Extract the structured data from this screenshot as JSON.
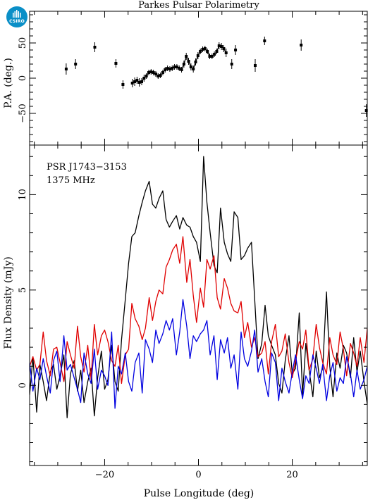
{
  "logo": {
    "text": "CSIRO"
  },
  "chart_data": [
    {
      "type": "scatter",
      "title": "Parkes Pulsar Polarimetry",
      "ylabel": "P.A. (deg.)",
      "xlim": [
        -36,
        36
      ],
      "ylim": [
        -95,
        95
      ],
      "yticks": [
        -50,
        0,
        50
      ],
      "yticklabels": [
        "−50",
        "0",
        "50"
      ],
      "series": [
        {
          "points": [
            {
              "x": -28.2,
              "y": 13,
              "err": 8
            },
            {
              "x": -26.2,
              "y": 20,
              "err": 7
            },
            {
              "x": -22.1,
              "y": 44,
              "err": 7
            },
            {
              "x": -17.6,
              "y": 21,
              "err": 6
            },
            {
              "x": -16.1,
              "y": -9,
              "err": 6
            },
            {
              "x": -14.1,
              "y": -7,
              "err": 6
            },
            {
              "x": -13.6,
              "y": -5,
              "err": 6
            },
            {
              "x": -13.1,
              "y": -3,
              "err": 5
            },
            {
              "x": -12.6,
              "y": -6,
              "err": 6
            },
            {
              "x": -12.1,
              "y": -5,
              "err": 5
            },
            {
              "x": -11.6,
              "y": 0,
              "err": 5
            },
            {
              "x": -11.1,
              "y": 3,
              "err": 4
            },
            {
              "x": -10.6,
              "y": 8,
              "err": 4
            },
            {
              "x": -10.1,
              "y": 9,
              "err": 4
            },
            {
              "x": -9.6,
              "y": 8,
              "err": 4
            },
            {
              "x": -9.1,
              "y": 6,
              "err": 4
            },
            {
              "x": -8.6,
              "y": 3,
              "err": 4
            },
            {
              "x": -8.1,
              "y": 4,
              "err": 4
            },
            {
              "x": -7.6,
              "y": 8,
              "err": 4
            },
            {
              "x": -7.1,
              "y": 12,
              "err": 4
            },
            {
              "x": -6.6,
              "y": 14,
              "err": 4
            },
            {
              "x": -6.1,
              "y": 13,
              "err": 4
            },
            {
              "x": -5.6,
              "y": 14,
              "err": 4
            },
            {
              "x": -5.1,
              "y": 16,
              "err": 4
            },
            {
              "x": -4.6,
              "y": 16,
              "err": 4
            },
            {
              "x": -4.1,
              "y": 14,
              "err": 4
            },
            {
              "x": -3.6,
              "y": 12,
              "err": 4
            },
            {
              "x": -3.1,
              "y": 20,
              "err": 5
            },
            {
              "x": -2.6,
              "y": 31,
              "err": 5
            },
            {
              "x": -2.1,
              "y": 24,
              "err": 5
            },
            {
              "x": -1.6,
              "y": 16,
              "err": 5
            },
            {
              "x": -1.1,
              "y": 13,
              "err": 5
            },
            {
              "x": -0.6,
              "y": 23,
              "err": 5
            },
            {
              "x": -0.1,
              "y": 32,
              "err": 5
            },
            {
              "x": 0.4,
              "y": 38,
              "err": 4
            },
            {
              "x": 0.9,
              "y": 41,
              "err": 4
            },
            {
              "x": 1.4,
              "y": 42,
              "err": 4
            },
            {
              "x": 1.9,
              "y": 38,
              "err": 4
            },
            {
              "x": 2.4,
              "y": 31,
              "err": 4
            },
            {
              "x": 2.9,
              "y": 31,
              "err": 4
            },
            {
              "x": 3.4,
              "y": 34,
              "err": 4
            },
            {
              "x": 3.9,
              "y": 38,
              "err": 4
            },
            {
              "x": 4.4,
              "y": 46,
              "err": 5
            },
            {
              "x": 4.9,
              "y": 45,
              "err": 5
            },
            {
              "x": 5.4,
              "y": 42,
              "err": 5
            },
            {
              "x": 5.9,
              "y": 36,
              "err": 6
            },
            {
              "x": 7.1,
              "y": 20,
              "err": 7
            },
            {
              "x": 7.9,
              "y": 40,
              "err": 7
            },
            {
              "x": 12.1,
              "y": 18,
              "err": 9
            },
            {
              "x": 14.1,
              "y": 53,
              "err": 6
            },
            {
              "x": 21.9,
              "y": 47,
              "err": 8
            },
            {
              "x": 35.8,
              "y": -46,
              "err": 9
            }
          ],
          "connected_range": [
            -14.5,
            6.2
          ]
        }
      ]
    },
    {
      "type": "line",
      "xlabel": "Pulse Longitude (deg)",
      "ylabel": "Flux Density (mJy)",
      "xlim": [
        -36,
        36
      ],
      "ylim": [
        -4.2,
        12.6
      ],
      "xticks": [
        -20,
        0,
        20
      ],
      "xticklabels": [
        "−20",
        "0",
        "20"
      ],
      "yticks": [
        0,
        5,
        10
      ],
      "yticklabels": [
        "0",
        "5",
        "10"
      ],
      "annotations": [
        "PSR J1743−3153",
        "1375 MHz"
      ],
      "x": [
        -36.0,
        -35.3,
        -34.5,
        -33.8,
        -33.1,
        -32.4,
        -31.6,
        -30.9,
        -30.2,
        -29.5,
        -28.7,
        -28.0,
        -27.3,
        -26.5,
        -25.8,
        -25.1,
        -24.4,
        -23.6,
        -22.9,
        -22.2,
        -21.5,
        -20.7,
        -20.0,
        -19.3,
        -18.5,
        -17.8,
        -17.1,
        -16.4,
        -15.6,
        -14.9,
        -14.2,
        -13.5,
        -12.7,
        -12.0,
        -11.3,
        -10.5,
        -9.8,
        -9.1,
        -8.4,
        -7.6,
        -6.9,
        -6.2,
        -5.5,
        -4.7,
        -4.0,
        -3.3,
        -2.5,
        -1.8,
        -1.1,
        -0.4,
        0.4,
        1.1,
        1.8,
        2.5,
        3.3,
        4.0,
        4.7,
        5.5,
        6.2,
        6.9,
        7.6,
        8.4,
        9.1,
        9.8,
        10.5,
        11.3,
        12.0,
        12.7,
        13.5,
        14.2,
        14.9,
        15.6,
        16.4,
        17.1,
        17.8,
        18.5,
        19.3,
        20.0,
        20.7,
        21.5,
        22.2,
        22.9,
        23.6,
        24.4,
        25.1,
        25.8,
        26.5,
        27.3,
        28.0,
        28.7,
        29.5,
        30.2,
        30.9,
        31.6,
        32.4,
        33.1,
        33.8,
        34.5,
        35.3,
        36.0
      ],
      "series": [
        {
          "color": "#000000",
          "values": [
            -0.5,
            1.5,
            -1.4,
            1.1,
            0.2,
            -0.8,
            0.7,
            1.1,
            -0.2,
            0.5,
            1.6,
            -1.7,
            0.6,
            1.3,
            -0.3,
            0.8,
            -0.9,
            0.2,
            0.9,
            -1.6,
            0.4,
            1.8,
            -0.2,
            0.3,
            2.1,
            0.2,
            -0.3,
            2.4,
            4.5,
            6.4,
            7.8,
            8.0,
            8.9,
            9.6,
            10.2,
            10.7,
            9.5,
            9.3,
            9.8,
            10.2,
            8.7,
            8.3,
            8.6,
            8.9,
            8.2,
            8.8,
            8.4,
            8.3,
            7.8,
            7.5,
            6.5,
            12.0,
            9.6,
            8.0,
            6.3,
            5.9,
            9.3,
            7.5,
            6.9,
            6.5,
            9.1,
            8.8,
            6.6,
            6.8,
            7.2,
            7.5,
            4.5,
            1.4,
            2.2,
            4.2,
            2.6,
            2.1,
            1.6,
            0.1,
            -0.4,
            1.3,
            2.6,
            0.6,
            0.9,
            3.8,
            -0.5,
            2.2,
            0.8,
            -0.6,
            1.8,
            0.4,
            0.9,
            4.9,
            1.0,
            -0.6,
            1.7,
            0.9,
            2.1,
            1.7,
            0.4,
            2.5,
            0.7,
            1.8,
            0.2,
            -1.0
          ]
        },
        {
          "color": "#e00000",
          "values": [
            1.0,
            1.5,
            0.8,
            1.1,
            2.8,
            1.3,
            0.5,
            1.9,
            2.0,
            1.2,
            0.2,
            2.3,
            1.6,
            0.9,
            3.1,
            1.5,
            0.7,
            2.1,
            0.3,
            3.2,
            1.6,
            2.6,
            2.9,
            2.3,
            1.3,
            1.0,
            2.1,
            0.1,
            1.6,
            1.9,
            4.3,
            3.5,
            3.1,
            2.4,
            3.0,
            4.6,
            3.4,
            4.4,
            5.0,
            4.8,
            6.2,
            6.6,
            7.1,
            7.4,
            6.4,
            7.8,
            5.4,
            6.6,
            4.7,
            3.3,
            5.1,
            4.1,
            6.6,
            6.1,
            6.8,
            4.6,
            4.0,
            5.6,
            5.1,
            4.3,
            3.9,
            3.8,
            4.4,
            2.5,
            3.3,
            2.0,
            2.5,
            1.5,
            1.7,
            2.3,
            0.6,
            2.3,
            3.2,
            1.5,
            1.8,
            2.7,
            1.2,
            0.4,
            1.3,
            2.3,
            1.9,
            2.9,
            0.8,
            1.4,
            3.2,
            2.0,
            1.2,
            0.6,
            2.5,
            1.6,
            1.1,
            2.8,
            1.9,
            0.5,
            2.2,
            1.7,
            1.0,
            2.5,
            1.2,
            3.0
          ]
        },
        {
          "color": "#0000e0",
          "values": [
            1.2,
            -0.3,
            0.9,
            0.3,
            1.4,
            0.5,
            -0.4,
            1.3,
            1.8,
            0.2,
            2.6,
            0.8,
            1.1,
            0.4,
            -0.2,
            -0.9,
            1.7,
            0.6,
            0.1,
            1.9,
            -0.2,
            0.8,
            0.5,
            0.0,
            2.8,
            -1.2,
            1.0,
            0.6,
            1.7,
            0.2,
            -0.3,
            1.2,
            1.7,
            -0.4,
            2.4,
            1.9,
            1.2,
            2.9,
            2.2,
            2.7,
            3.4,
            2.9,
            3.5,
            1.6,
            2.8,
            4.5,
            3.1,
            1.4,
            2.6,
            2.3,
            2.7,
            2.9,
            3.4,
            1.6,
            2.6,
            0.3,
            2.4,
            1.7,
            2.5,
            0.9,
            1.6,
            -0.2,
            2.8,
            1.4,
            1.0,
            1.8,
            2.9,
            0.7,
            1.4,
            0.2,
            -0.6,
            1.7,
            1.2,
            -0.8,
            0.9,
            0.2,
            -0.4,
            0.7,
            1.6,
            0.3,
            -0.7,
            0.5,
            0.1,
            1.6,
            0.9,
            0.1,
            1.1,
            -0.8,
            0.5,
            1.2,
            -0.3,
            0.4,
            0.1,
            1.5,
            0.6,
            -0.6,
            0.8,
            -0.2,
            0.3,
            1.0
          ]
        }
      ]
    }
  ]
}
